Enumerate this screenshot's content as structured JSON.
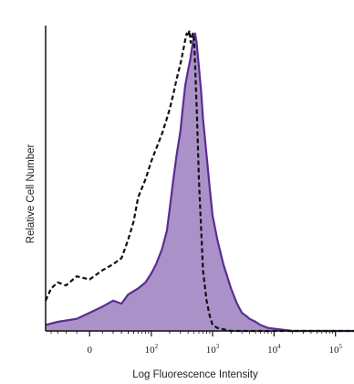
{
  "chart_data": {
    "type": "area",
    "title": "",
    "xlabel": "Log Fluorescence Intensity",
    "ylabel": "Relative Cell Number",
    "x_scale": "biexponential",
    "x_ticks": [
      {
        "value": 0,
        "base": "0",
        "exp": ""
      },
      {
        "value": 100,
        "base": "10",
        "exp": "2"
      },
      {
        "value": 1000,
        "base": "10",
        "exp": "3"
      },
      {
        "value": 10000,
        "base": "10",
        "exp": "4"
      },
      {
        "value": 100000,
        "base": "10",
        "exp": "5"
      }
    ],
    "xlim": [
      -50,
      200000
    ],
    "ylim": [
      0,
      100
    ],
    "grid": false,
    "legend": "none",
    "series": [
      {
        "style": "filled",
        "color": "#9b7fc0",
        "edge_color": "#5a2d91",
        "x": [
          -50,
          -30,
          -10,
          0,
          10,
          20,
          30,
          40,
          60,
          80,
          100,
          120,
          150,
          180,
          200,
          230,
          260,
          300,
          330,
          360,
          400,
          430,
          460,
          480,
          500,
          520,
          550,
          600,
          650,
          700,
          800,
          900,
          1000,
          1200,
          1500,
          2000,
          2500,
          3000,
          3500,
          4000,
          5000,
          6000,
          8000,
          20000,
          200000
        ],
        "y": [
          2,
          3,
          4,
          6,
          8,
          10,
          9,
          12,
          14,
          16,
          19,
          22,
          27,
          33,
          40,
          50,
          58,
          66,
          74,
          81,
          86,
          89,
          93,
          95,
          97,
          98,
          95,
          87,
          79,
          70,
          58,
          47,
          38,
          30,
          22,
          14,
          9,
          6,
          5,
          4,
          3,
          2,
          1,
          0,
          0
        ]
      },
      {
        "style": "dashed",
        "color": "#111111",
        "x": [
          -50,
          -40,
          -30,
          -20,
          -10,
          0,
          10,
          20,
          30,
          40,
          50,
          60,
          80,
          100,
          120,
          150,
          180,
          200,
          230,
          260,
          300,
          330,
          360,
          380,
          400,
          420,
          440,
          460,
          480,
          500,
          520,
          560,
          600,
          650,
          700,
          800,
          900,
          1000,
          1200,
          2000,
          200000
        ],
        "y": [
          10,
          14,
          16,
          15,
          18,
          17,
          20,
          22,
          24,
          30,
          36,
          44,
          50,
          56,
          60,
          65,
          70,
          73,
          78,
          83,
          88,
          92,
          96,
          98,
          97,
          99,
          95,
          97,
          98,
          96,
          88,
          70,
          50,
          34,
          20,
          10,
          5,
          2,
          1,
          0,
          0
        ]
      }
    ]
  }
}
